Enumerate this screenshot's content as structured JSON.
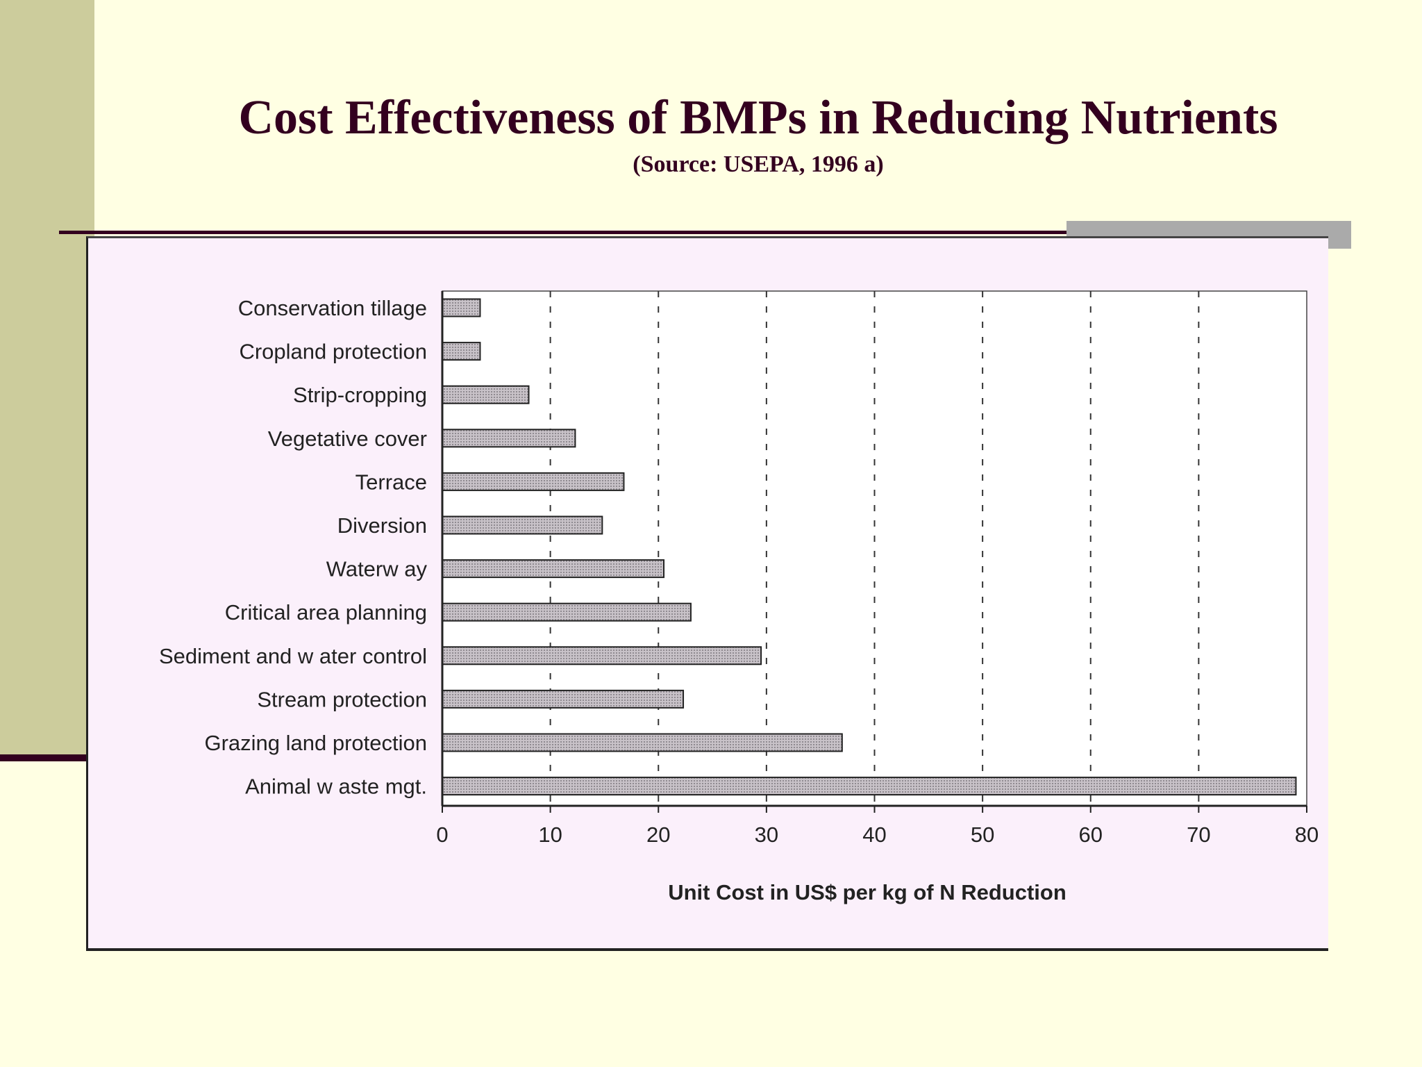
{
  "slide": {
    "title": "Cost Effectiveness of BMPs in Reducing Nutrients",
    "subtitle": "(Source: USEPA, 1996 a)"
  },
  "colors": {
    "background": "#ffffe3",
    "side_bar": "#cccc9c",
    "title": "#33001f",
    "chart_panel": "#fbf0fb",
    "bar_fill": "#c8c2c8"
  },
  "chart_data": {
    "type": "bar",
    "orientation": "horizontal",
    "categories": [
      "Conservation tillage",
      "Cropland protection",
      "Strip-cropping",
      "Vegetative cover",
      "Terrace",
      "Diversion",
      "Waterw ay",
      "Critical area planning",
      "Sediment and w ater control",
      "Stream protection",
      "Grazing land protection",
      "Animal w aste mgt."
    ],
    "values": [
      3.5,
      3.5,
      8,
      12.3,
      16.8,
      14.8,
      20.5,
      23,
      29.5,
      22.3,
      37,
      79
    ],
    "xlabel": "Unit Cost  in US$ per kg of N Reduction",
    "xlim": [
      0,
      80
    ],
    "xticks": [
      "0",
      "10",
      "20",
      "30",
      "40",
      "50",
      "60",
      "70",
      "80"
    ],
    "grid": "vertical dashed"
  }
}
